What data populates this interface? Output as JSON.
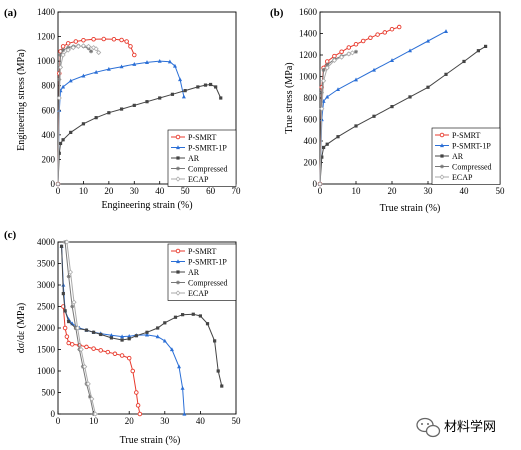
{
  "colors": {
    "P-SMRT": "#e8392c",
    "P-SMRT-1P": "#2b6fd6",
    "AR": "#444444",
    "Compressed": "#777777",
    "ECAP": "#aaaaaa"
  },
  "watermark": {
    "icon": "wechat-icon",
    "text": "材料学网"
  },
  "chart_data": [
    {
      "panel_label": "(a)",
      "type": "line",
      "xlabel": "Engineering strain (%)",
      "ylabel": "Engineering stress (MPa)",
      "xlim": [
        0,
        70
      ],
      "ylim": [
        0,
        1400
      ],
      "xticks": [
        0,
        10,
        20,
        30,
        40,
        50,
        60,
        70
      ],
      "yticks": [
        0,
        200,
        400,
        600,
        800,
        1000,
        1200,
        1400
      ],
      "legend": "bottom-right",
      "series": [
        {
          "name": "P-SMRT",
          "marker": "circle-open",
          "x": [
            0,
            0.5,
            1,
            2,
            4,
            7,
            10,
            14,
            18,
            22,
            25,
            27,
            28.5,
            30
          ],
          "y": [
            0,
            900,
            1080,
            1120,
            1145,
            1160,
            1170,
            1178,
            1180,
            1178,
            1172,
            1160,
            1120,
            1050
          ]
        },
        {
          "name": "P-SMRT-1P",
          "marker": "triangle",
          "x": [
            0,
            0.5,
            1,
            2,
            5,
            10,
            15,
            20,
            25,
            30,
            35,
            40,
            44,
            46,
            48,
            49.5
          ],
          "y": [
            0,
            600,
            760,
            790,
            840,
            880,
            910,
            935,
            955,
            975,
            990,
            1000,
            995,
            960,
            850,
            710
          ]
        },
        {
          "name": "AR",
          "marker": "square",
          "x": [
            0,
            0.5,
            1,
            2,
            5,
            10,
            15,
            20,
            25,
            30,
            35,
            40,
            45,
            50,
            55,
            58,
            60,
            62,
            64
          ],
          "y": [
            0,
            250,
            330,
            360,
            420,
            490,
            540,
            580,
            610,
            640,
            670,
            700,
            730,
            760,
            790,
            805,
            810,
            790,
            700
          ]
        },
        {
          "name": "Compressed",
          "marker": "star",
          "x": [
            0,
            0.5,
            1,
            2,
            4,
            6,
            8,
            10,
            12,
            13
          ],
          "y": [
            0,
            850,
            1050,
            1090,
            1110,
            1120,
            1125,
            1120,
            1105,
            1080
          ]
        },
        {
          "name": "ECAP",
          "marker": "diamond-open",
          "x": [
            0,
            0.5,
            1,
            2,
            4,
            6,
            8,
            10,
            12,
            14,
            15,
            16
          ],
          "y": [
            0,
            700,
            950,
            1050,
            1090,
            1110,
            1120,
            1125,
            1120,
            1110,
            1100,
            1070
          ]
        }
      ]
    },
    {
      "panel_label": "(b)",
      "type": "line",
      "xlabel": "True strain (%)",
      "ylabel": "True stress (MPa)",
      "xlim": [
        0,
        50
      ],
      "ylim": [
        0,
        1600
      ],
      "xticks": [
        0,
        10,
        20,
        30,
        40,
        50
      ],
      "yticks": [
        0,
        200,
        400,
        600,
        800,
        1000,
        1200,
        1400,
        1600
      ],
      "legend": "bottom-right",
      "series": [
        {
          "name": "P-SMRT",
          "marker": "circle-open",
          "x": [
            0,
            0.5,
            1,
            2,
            4,
            6,
            8,
            10,
            12,
            14,
            16,
            18,
            20,
            22
          ],
          "y": [
            0,
            900,
            1080,
            1140,
            1190,
            1230,
            1270,
            1300,
            1330,
            1360,
            1390,
            1410,
            1440,
            1460
          ]
        },
        {
          "name": "P-SMRT-1P",
          "marker": "triangle",
          "x": [
            0,
            0.5,
            1,
            2,
            5,
            10,
            15,
            20,
            25,
            30,
            35
          ],
          "y": [
            0,
            600,
            770,
            810,
            880,
            970,
            1060,
            1150,
            1240,
            1330,
            1420
          ]
        },
        {
          "name": "AR",
          "marker": "square",
          "x": [
            0,
            0.5,
            1,
            2,
            5,
            10,
            15,
            20,
            25,
            30,
            35,
            40,
            44,
            46
          ],
          "y": [
            0,
            250,
            340,
            370,
            440,
            540,
            630,
            720,
            810,
            900,
            1020,
            1140,
            1240,
            1280
          ]
        },
        {
          "name": "Compressed",
          "marker": "star",
          "x": [
            0,
            0.5,
            1,
            2,
            4,
            6,
            8,
            10
          ],
          "y": [
            0,
            850,
            1060,
            1110,
            1160,
            1190,
            1210,
            1230
          ]
        },
        {
          "name": "ECAP",
          "marker": "diamond-open",
          "x": [
            0,
            0.5,
            1,
            2,
            4,
            6,
            8,
            9
          ],
          "y": [
            0,
            700,
            960,
            1080,
            1150,
            1180,
            1210,
            1220
          ]
        }
      ]
    },
    {
      "panel_label": "(c)",
      "type": "line",
      "xlabel": "True strain (%)",
      "ylabel": "dσ/dε (MPa)",
      "xlim": [
        0,
        50
      ],
      "ylim": [
        0,
        4000
      ],
      "xticks": [
        0,
        10,
        20,
        30,
        40,
        50
      ],
      "yticks": [
        0,
        500,
        1000,
        1500,
        2000,
        2500,
        3000,
        3500,
        4000
      ],
      "legend": "top-right",
      "series": [
        {
          "name": "P-SMRT",
          "marker": "circle-open",
          "x": [
            1.5,
            2,
            2.5,
            3,
            4,
            6,
            8,
            10,
            12,
            14,
            16,
            18,
            20,
            21,
            22,
            22.5,
            23
          ],
          "y": [
            2500,
            2000,
            1800,
            1650,
            1620,
            1600,
            1560,
            1520,
            1480,
            1440,
            1400,
            1360,
            1300,
            1000,
            500,
            200,
            0
          ]
        },
        {
          "name": "P-SMRT-1P",
          "marker": "triangle",
          "x": [
            1,
            1.5,
            2,
            3,
            4,
            6,
            8,
            10,
            12,
            15,
            18,
            20,
            22,
            25,
            28,
            30,
            32,
            34,
            35,
            35.5
          ],
          "y": [
            3900,
            3000,
            2400,
            2200,
            2100,
            2000,
            1950,
            1900,
            1870,
            1830,
            1800,
            1810,
            1830,
            1840,
            1800,
            1700,
            1500,
            1100,
            600,
            0
          ]
        },
        {
          "name": "AR",
          "marker": "square",
          "x": [
            1,
            1.5,
            2,
            3,
            5,
            8,
            10,
            12,
            15,
            18,
            20,
            22,
            25,
            28,
            30,
            33,
            35,
            38,
            40,
            42,
            44,
            45,
            46
          ],
          "y": [
            3900,
            2800,
            2400,
            2150,
            2000,
            1950,
            1900,
            1850,
            1770,
            1720,
            1750,
            1820,
            1900,
            2000,
            2120,
            2250,
            2310,
            2320,
            2280,
            2100,
            1700,
            1000,
            650
          ]
        },
        {
          "name": "Compressed",
          "marker": "star",
          "x": [
            2,
            3,
            4,
            5,
            6,
            7,
            8,
            9,
            10
          ],
          "y": [
            4000,
            3200,
            2500,
            2000,
            1500,
            1100,
            700,
            400,
            0
          ]
        },
        {
          "name": "ECAP",
          "marker": "diamond-open",
          "x": [
            2.5,
            3.5,
            4.5,
            5.5,
            6.5,
            7.5,
            8.5,
            9.5,
            10.5
          ],
          "y": [
            4000,
            3300,
            2600,
            2000,
            1500,
            1100,
            700,
            350,
            0
          ]
        }
      ]
    }
  ]
}
